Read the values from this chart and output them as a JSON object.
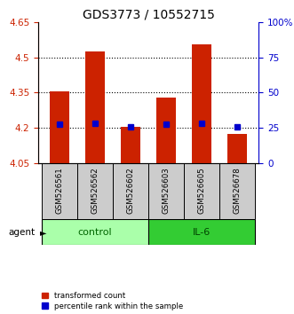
{
  "title": "GDS3773 / 10552715",
  "samples": [
    "GSM526561",
    "GSM526562",
    "GSM526602",
    "GSM526603",
    "GSM526605",
    "GSM526678"
  ],
  "red_bar_top": [
    4.355,
    4.525,
    4.205,
    4.33,
    4.555,
    4.175
  ],
  "blue_marker": [
    4.215,
    4.22,
    4.205,
    4.215,
    4.22,
    4.205
  ],
  "ymin": 4.05,
  "ymax": 4.65,
  "yticks_left": [
    4.05,
    4.2,
    4.35,
    4.5,
    4.65
  ],
  "yticks_right": [
    0,
    25,
    50,
    75,
    100
  ],
  "bar_color": "#cc2200",
  "blue_color": "#0000cc",
  "control_color": "#aaffaa",
  "il6_color": "#33cc33",
  "grid_yticks": [
    4.2,
    4.35,
    4.5
  ],
  "title_fontsize": 10,
  "tick_fontsize": 7.5,
  "bar_width": 0.55,
  "legend_red": "transformed count",
  "legend_blue": "percentile rank within the sample"
}
